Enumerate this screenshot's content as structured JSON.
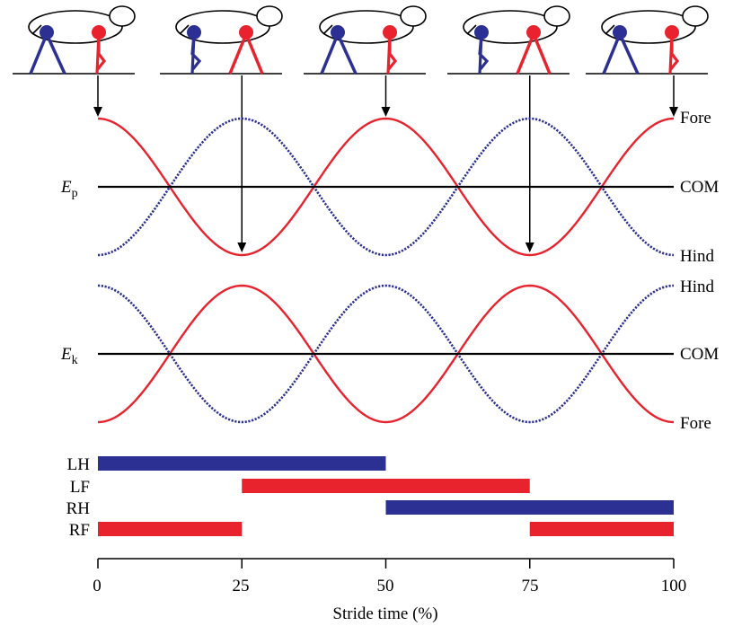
{
  "figure": {
    "energy_top": {
      "symbol": "E",
      "subscript": "p",
      "label_top": "Fore",
      "label_mid": "COM",
      "label_bottom": "Hind"
    },
    "energy_bottom": {
      "symbol": "E",
      "subscript": "k",
      "label_top": "Hind",
      "label_mid": "COM",
      "label_bottom": "Fore"
    },
    "limbs": [
      "LH",
      "LF",
      "RH",
      "RF"
    ],
    "xaxis": {
      "label": "Stride time (%)",
      "ticks": [
        "0",
        "25",
        "50",
        "75",
        "100"
      ]
    },
    "colors": {
      "red": "#e8232e",
      "blue": "#2b3092",
      "black": "#000000"
    }
  },
  "chart_data": {
    "type": "line",
    "x_unit": "Stride time (%)",
    "xlim": [
      0,
      100
    ],
    "panels": [
      {
        "name": "Ep",
        "series": [
          {
            "name": "Fore",
            "color": "#e8232e",
            "style": "solid",
            "x": [
              0,
              25,
              50,
              75,
              100
            ],
            "y": [
              1,
              -1,
              1,
              -1,
              1
            ]
          },
          {
            "name": "Hind",
            "color": "#2b3092",
            "style": "dotted",
            "x": [
              0,
              25,
              50,
              75,
              100
            ],
            "y": [
              -1,
              1,
              -1,
              1,
              -1
            ]
          },
          {
            "name": "COM",
            "color": "#000000",
            "style": "solid",
            "x": [
              0,
              100
            ],
            "y": [
              0,
              0
            ]
          }
        ]
      },
      {
        "name": "Ek",
        "series": [
          {
            "name": "Fore",
            "color": "#e8232e",
            "style": "solid",
            "x": [
              0,
              25,
              50,
              75,
              100
            ],
            "y": [
              -1,
              1,
              -1,
              1,
              -1
            ]
          },
          {
            "name": "Hind",
            "color": "#2b3092",
            "style": "dotted",
            "x": [
              0,
              25,
              50,
              75,
              100
            ],
            "y": [
              1,
              -1,
              1,
              -1,
              1
            ]
          },
          {
            "name": "COM",
            "color": "#000000",
            "style": "solid",
            "x": [
              0,
              100
            ],
            "y": [
              0,
              0
            ]
          }
        ]
      }
    ],
    "footfall": [
      {
        "limb": "LH",
        "color": "#2b3092",
        "intervals": [
          [
            0,
            50
          ]
        ]
      },
      {
        "limb": "LF",
        "color": "#e8232e",
        "intervals": [
          [
            25,
            75
          ]
        ]
      },
      {
        "limb": "RH",
        "color": "#2b3092",
        "intervals": [
          [
            50,
            100
          ]
        ]
      },
      {
        "limb": "RF",
        "color": "#e8232e",
        "intervals": [
          [
            0,
            25
          ],
          [
            75,
            100
          ]
        ]
      }
    ],
    "arrows_at": [
      0,
      25,
      50,
      75,
      100
    ]
  }
}
